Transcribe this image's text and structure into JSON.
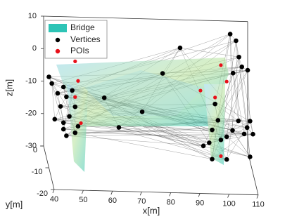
{
  "chart_data": {
    "type": "scatter3d",
    "xlabel": "x[m]",
    "ylabel": "y[m]",
    "zlabel": "z[m]",
    "xlim": [
      40,
      110
    ],
    "ylim": [
      -20,
      0
    ],
    "zlim": [
      -30,
      10
    ],
    "xticks": [
      40,
      50,
      60,
      70,
      80,
      90,
      100,
      110
    ],
    "yticks": [
      -20,
      -10,
      0
    ],
    "zticks": [
      -30,
      -20,
      -10,
      0,
      10
    ],
    "surface": {
      "name": "Bridge",
      "color": "#2ec4b6"
    },
    "series": [
      {
        "name": "Vertices",
        "color": "#000000",
        "x": [
          40,
          41,
          43,
          45,
          46,
          44,
          42,
          45,
          47,
          49,
          46,
          50,
          45,
          48,
          49,
          59,
          64,
          72,
          85,
          79,
          96,
          98,
          97,
          99,
          95,
          101,
          96,
          104,
          106,
          107,
          108,
          110,
          105,
          105,
          108,
          110,
          109,
          107,
          103,
          109,
          101,
          93
        ],
        "y": [
          -10,
          -10,
          -10,
          -10,
          -10,
          -10,
          -10,
          -10,
          -10,
          -10,
          -10,
          -10,
          -10,
          -10,
          -10,
          -10,
          -10,
          -10,
          -10,
          -10,
          -10,
          -10,
          -10,
          -10,
          -10,
          -10,
          -10,
          0,
          0,
          0,
          0,
          0,
          0,
          -10,
          -10,
          -10,
          -10,
          -10,
          -10,
          -10,
          -10,
          -10
        ],
        "z": [
          -2,
          -4,
          -7,
          -5,
          -8,
          -11,
          -15,
          -16,
          -14,
          -19,
          -20,
          -17,
          -18,
          -6,
          -11,
          -8,
          -17,
          -12,
          8,
          0,
          -17,
          -14,
          -9,
          -20,
          -21,
          -26,
          -26,
          6,
          4,
          -1,
          -4,
          -5,
          -6,
          -14,
          -16,
          -18,
          -14,
          -18,
          -17,
          -25,
          -19,
          -22
        ]
      },
      {
        "name": "POIs",
        "color": "#e8101a",
        "x": [
          49,
          50,
          49,
          51,
          92,
          97,
          99,
          101,
          99
        ],
        "y": [
          -10,
          -10,
          -10,
          -10,
          -10,
          -10,
          -10,
          -10,
          -10
        ],
        "z": [
          3,
          -3,
          -8,
          -16,
          -5,
          -7,
          3,
          -2,
          -25
        ]
      }
    ]
  }
}
